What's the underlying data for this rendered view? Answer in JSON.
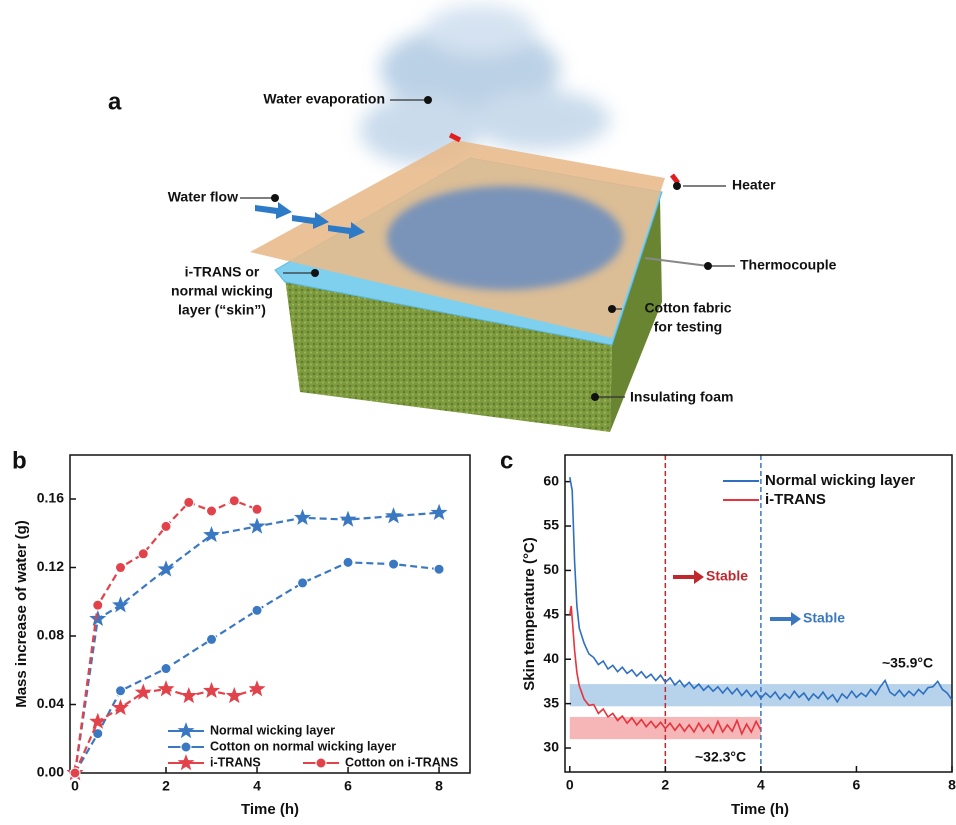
{
  "diagram": {
    "panel_label": "a",
    "labels": {
      "water_evaporation": "Water evaporation",
      "water_flow": "Water flow",
      "heater": "Heater",
      "thermocouple": "Thermocouple",
      "skin_layer": [
        "i-TRANS or",
        "normal wicking",
        "layer (“skin”)"
      ],
      "cotton_fabric": [
        "Cotton fabric",
        "for testing"
      ],
      "insulating_foam": "Insulating foam"
    }
  },
  "chart_data": [
    {
      "type": "line",
      "panel_label": "b",
      "xlabel": "Time (h)",
      "ylabel": "Mass increase of water (g)",
      "xlim": [
        -0.11,
        8.68
      ],
      "ylim": [
        0,
        0.1857
      ],
      "xticks": [
        0,
        2,
        4,
        6,
        8
      ],
      "yticks": [
        {
          "value": 0,
          "label": "0.00"
        },
        {
          "value": 0.04,
          "label": "0.04"
        },
        {
          "value": 0.08,
          "label": "0.08"
        },
        {
          "value": 0.12,
          "label": "0.12"
        },
        {
          "value": 0.16,
          "label": "0.16"
        }
      ],
      "linestyle": "dashed",
      "legend": "lower right",
      "series": [
        {
          "name": "Normal wicking layer",
          "color": "#3b78c2",
          "marker": "star",
          "x": [
            0,
            0.5,
            1,
            2,
            3,
            4,
            5,
            6,
            7,
            8
          ],
          "values": [
            0,
            0.09,
            0.098,
            0.119,
            0.139,
            0.144,
            0.149,
            0.148,
            0.15,
            0.152
          ]
        },
        {
          "name": "Cotton on normal wicking layer",
          "color": "#3b78c2",
          "marker": "circle",
          "x": [
            0,
            0.5,
            1,
            2,
            3,
            4,
            5,
            6,
            7,
            8
          ],
          "values": [
            0,
            0.023,
            0.048,
            0.061,
            0.078,
            0.095,
            0.111,
            0.123,
            0.122,
            0.119
          ]
        },
        {
          "name": "i-TRANS",
          "color": "#e2434b",
          "marker": "star",
          "x": [
            0,
            0.5,
            1,
            1.5,
            2,
            2.5,
            3,
            3.5,
            4
          ],
          "values": [
            0,
            0.03,
            0.038,
            0.047,
            0.049,
            0.045,
            0.048,
            0.045,
            0.049
          ]
        },
        {
          "name": "Cotton on i-TRANS",
          "color": "#e2434b",
          "marker": "circle",
          "x": [
            0,
            0.5,
            1,
            1.5,
            2,
            2.5,
            3,
            3.5,
            4
          ],
          "values": [
            0,
            0.098,
            0.12,
            0.128,
            0.144,
            0.158,
            0.153,
            0.159,
            0.154
          ]
        }
      ]
    },
    {
      "type": "line",
      "panel_label": "c",
      "xlabel": "Time (h)",
      "ylabel": "Skin temperature (°C)",
      "xlim": [
        -0.1,
        8
      ],
      "ylim": [
        27.3,
        63
      ],
      "xticks": [
        0,
        2,
        4,
        6,
        8
      ],
      "yticks": [
        30,
        35,
        40,
        45,
        50,
        55,
        60
      ],
      "legend": "upper right",
      "series": [
        {
          "name": "Normal wicking layer",
          "color": "#2f6fc0",
          "x": [
            0,
            0.05,
            0.1,
            0.15,
            0.2,
            0.3,
            0.4,
            0.5,
            0.6,
            0.7,
            0.8,
            0.9,
            1.0,
            1.1,
            1.2,
            1.3,
            1.4,
            1.5,
            1.6,
            1.7,
            1.8,
            1.9,
            2.0,
            2.1,
            2.2,
            2.3,
            2.4,
            2.5,
            2.6,
            2.7,
            2.8,
            2.9,
            3.0,
            3.1,
            3.2,
            3.3,
            3.4,
            3.5,
            3.6,
            3.7,
            3.8,
            3.9,
            4.0,
            4.1,
            4.2,
            4.3,
            4.4,
            4.5,
            4.6,
            4.7,
            4.8,
            4.9,
            5.0,
            5.1,
            5.2,
            5.3,
            5.4,
            5.5,
            5.6,
            5.7,
            5.8,
            5.9,
            6.0,
            6.1,
            6.2,
            6.3,
            6.4,
            6.5,
            6.6,
            6.7,
            6.8,
            6.9,
            7.0,
            7.1,
            7.2,
            7.3,
            7.4,
            7.5,
            7.6,
            7.7,
            7.8,
            7.9,
            8.0
          ],
          "values": [
            60.5,
            59,
            51,
            46,
            43.5,
            41.8,
            40.6,
            40.2,
            39.4,
            39.8,
            38.9,
            39.3,
            38.6,
            39.1,
            38.4,
            38.8,
            38.1,
            38.6,
            37.9,
            38.3,
            37.6,
            38.2,
            37.4,
            37.9,
            37.1,
            37.6,
            36.9,
            37.4,
            36.7,
            37.2,
            36.5,
            37.0,
            36.4,
            36.9,
            36.2,
            36.8,
            36.1,
            36.7,
            35.9,
            36.5,
            35.8,
            36.4,
            35.6,
            36.2,
            35.7,
            36.3,
            35.5,
            36.1,
            35.6,
            36.4,
            35.7,
            36.2,
            35.4,
            36.1,
            35.6,
            36.3,
            35.5,
            36.0,
            35.2,
            36.1,
            35.6,
            36.4,
            35.7,
            36.2,
            35.8,
            36.6,
            36.0,
            36.9,
            37.6,
            36.3,
            35.9,
            36.5,
            35.8,
            36.4,
            35.9,
            36.6,
            36.1,
            36.8,
            36.9,
            37.5,
            36.6,
            36.2,
            35.4
          ]
        },
        {
          "name": "i-TRANS",
          "color": "#e5343d",
          "x": [
            0,
            0.03,
            0.06,
            0.1,
            0.15,
            0.2,
            0.3,
            0.4,
            0.5,
            0.6,
            0.7,
            0.8,
            0.9,
            1.0,
            1.1,
            1.2,
            1.3,
            1.4,
            1.5,
            1.6,
            1.7,
            1.8,
            1.9,
            2.0,
            2.1,
            2.2,
            2.3,
            2.4,
            2.5,
            2.6,
            2.7,
            2.8,
            2.9,
            3.0,
            3.1,
            3.2,
            3.3,
            3.4,
            3.5,
            3.6,
            3.7,
            3.8,
            3.9,
            4.0
          ],
          "values": [
            45,
            46,
            44,
            41,
            38.5,
            37,
            35.5,
            34.8,
            34.9,
            33.9,
            34.4,
            33.5,
            33.9,
            33.1,
            33.6,
            32.8,
            33.4,
            32.6,
            33.2,
            32.4,
            33.0,
            32.3,
            32.9,
            32.2,
            32.8,
            32.0,
            32.7,
            31.9,
            32.6,
            31.8,
            32.8,
            31.9,
            32.6,
            31.7,
            33.0,
            31.8,
            32.6,
            31.9,
            33.1,
            31.6,
            32.7,
            31.8,
            33.0,
            32.0
          ]
        }
      ],
      "bands": [
        {
          "from": 34.7,
          "to": 37.2,
          "x": [
            0,
            8
          ],
          "color": "#a9cbe8"
        },
        {
          "from": 31,
          "to": 33.5,
          "x": [
            0,
            4
          ],
          "color": "#f4a9ac"
        }
      ],
      "vlines": [
        {
          "x": 2,
          "color": "#c0282d"
        },
        {
          "x": 4,
          "color": "#3b78c2"
        }
      ],
      "annotations": [
        "Stable",
        "Stable",
        "~35.9°C",
        "~32.3°C"
      ]
    }
  ]
}
